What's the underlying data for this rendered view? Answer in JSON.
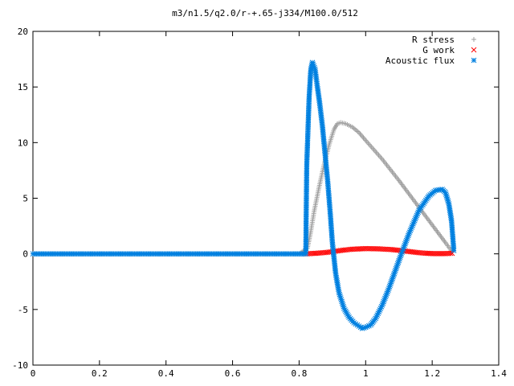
{
  "chart_data": {
    "type": "scatter",
    "title": "m3/n1.5/q2.0/r-+.65-j334/M100.0/512",
    "xlabel": "",
    "ylabel": "",
    "xlim": [
      0,
      1.4
    ],
    "ylim": [
      -10,
      20
    ],
    "xticks": [
      0,
      0.2,
      0.4,
      0.6,
      0.8,
      1,
      1.2,
      1.4
    ],
    "yticks": [
      -10,
      -5,
      0,
      5,
      10,
      15,
      20
    ],
    "legend_position": "top-right",
    "grid": false,
    "series": [
      {
        "name": "R stress",
        "marker": "plus",
        "color": "#a0a0a0",
        "x": [
          0.0,
          0.1,
          0.2,
          0.3,
          0.4,
          0.5,
          0.6,
          0.7,
          0.8,
          0.825,
          0.835,
          0.845,
          0.86,
          0.875,
          0.89,
          0.905,
          0.915,
          0.925,
          0.94,
          0.96,
          0.98,
          1.0,
          1.05,
          1.1,
          1.15,
          1.2,
          1.24,
          1.26
        ],
        "y": [
          0,
          0,
          0,
          0,
          0,
          0,
          0,
          0,
          0,
          0.5,
          2.0,
          3.8,
          6.0,
          8.0,
          9.8,
          11.2,
          11.7,
          11.8,
          11.7,
          11.4,
          10.9,
          10.2,
          8.5,
          6.6,
          4.6,
          2.6,
          1.0,
          0.2
        ]
      },
      {
        "name": "G work",
        "marker": "cross",
        "color": "#ff0000",
        "x": [
          0.82,
          0.85,
          0.88,
          0.9,
          0.93,
          0.96,
          1.0,
          1.04,
          1.08,
          1.12,
          1.16,
          1.2,
          1.24,
          1.26
        ],
        "y": [
          0,
          0.05,
          0.12,
          0.2,
          0.32,
          0.42,
          0.47,
          0.45,
          0.38,
          0.25,
          0.1,
          0.02,
          0.02,
          0.05
        ]
      },
      {
        "name": "Acoustic flux",
        "marker": "asterisk",
        "color": "#0080e0",
        "x": [
          0.0,
          0.1,
          0.2,
          0.3,
          0.4,
          0.5,
          0.6,
          0.7,
          0.8,
          0.82,
          0.823,
          0.83,
          0.835,
          0.84,
          0.848,
          0.855,
          0.862,
          0.87,
          0.878,
          0.886,
          0.894,
          0.9,
          0.91,
          0.92,
          0.935,
          0.95,
          0.965,
          0.98,
          0.99,
          1.0,
          1.015,
          1.03,
          1.05,
          1.07,
          1.1,
          1.13,
          1.16,
          1.19,
          1.21,
          1.23,
          1.24,
          1.25,
          1.258,
          1.265
        ],
        "y": [
          0,
          0,
          0,
          0,
          0,
          0,
          0,
          0,
          0,
          0,
          8.0,
          14.0,
          16.5,
          17.2,
          16.6,
          15.0,
          13.5,
          11.5,
          9.0,
          6.5,
          3.5,
          1.0,
          -1.8,
          -3.5,
          -4.9,
          -5.7,
          -6.2,
          -6.5,
          -6.7,
          -6.6,
          -6.4,
          -5.8,
          -4.6,
          -3.1,
          -0.6,
          1.8,
          3.9,
          5.2,
          5.7,
          5.8,
          5.5,
          4.5,
          3.0,
          0.3
        ]
      }
    ]
  }
}
